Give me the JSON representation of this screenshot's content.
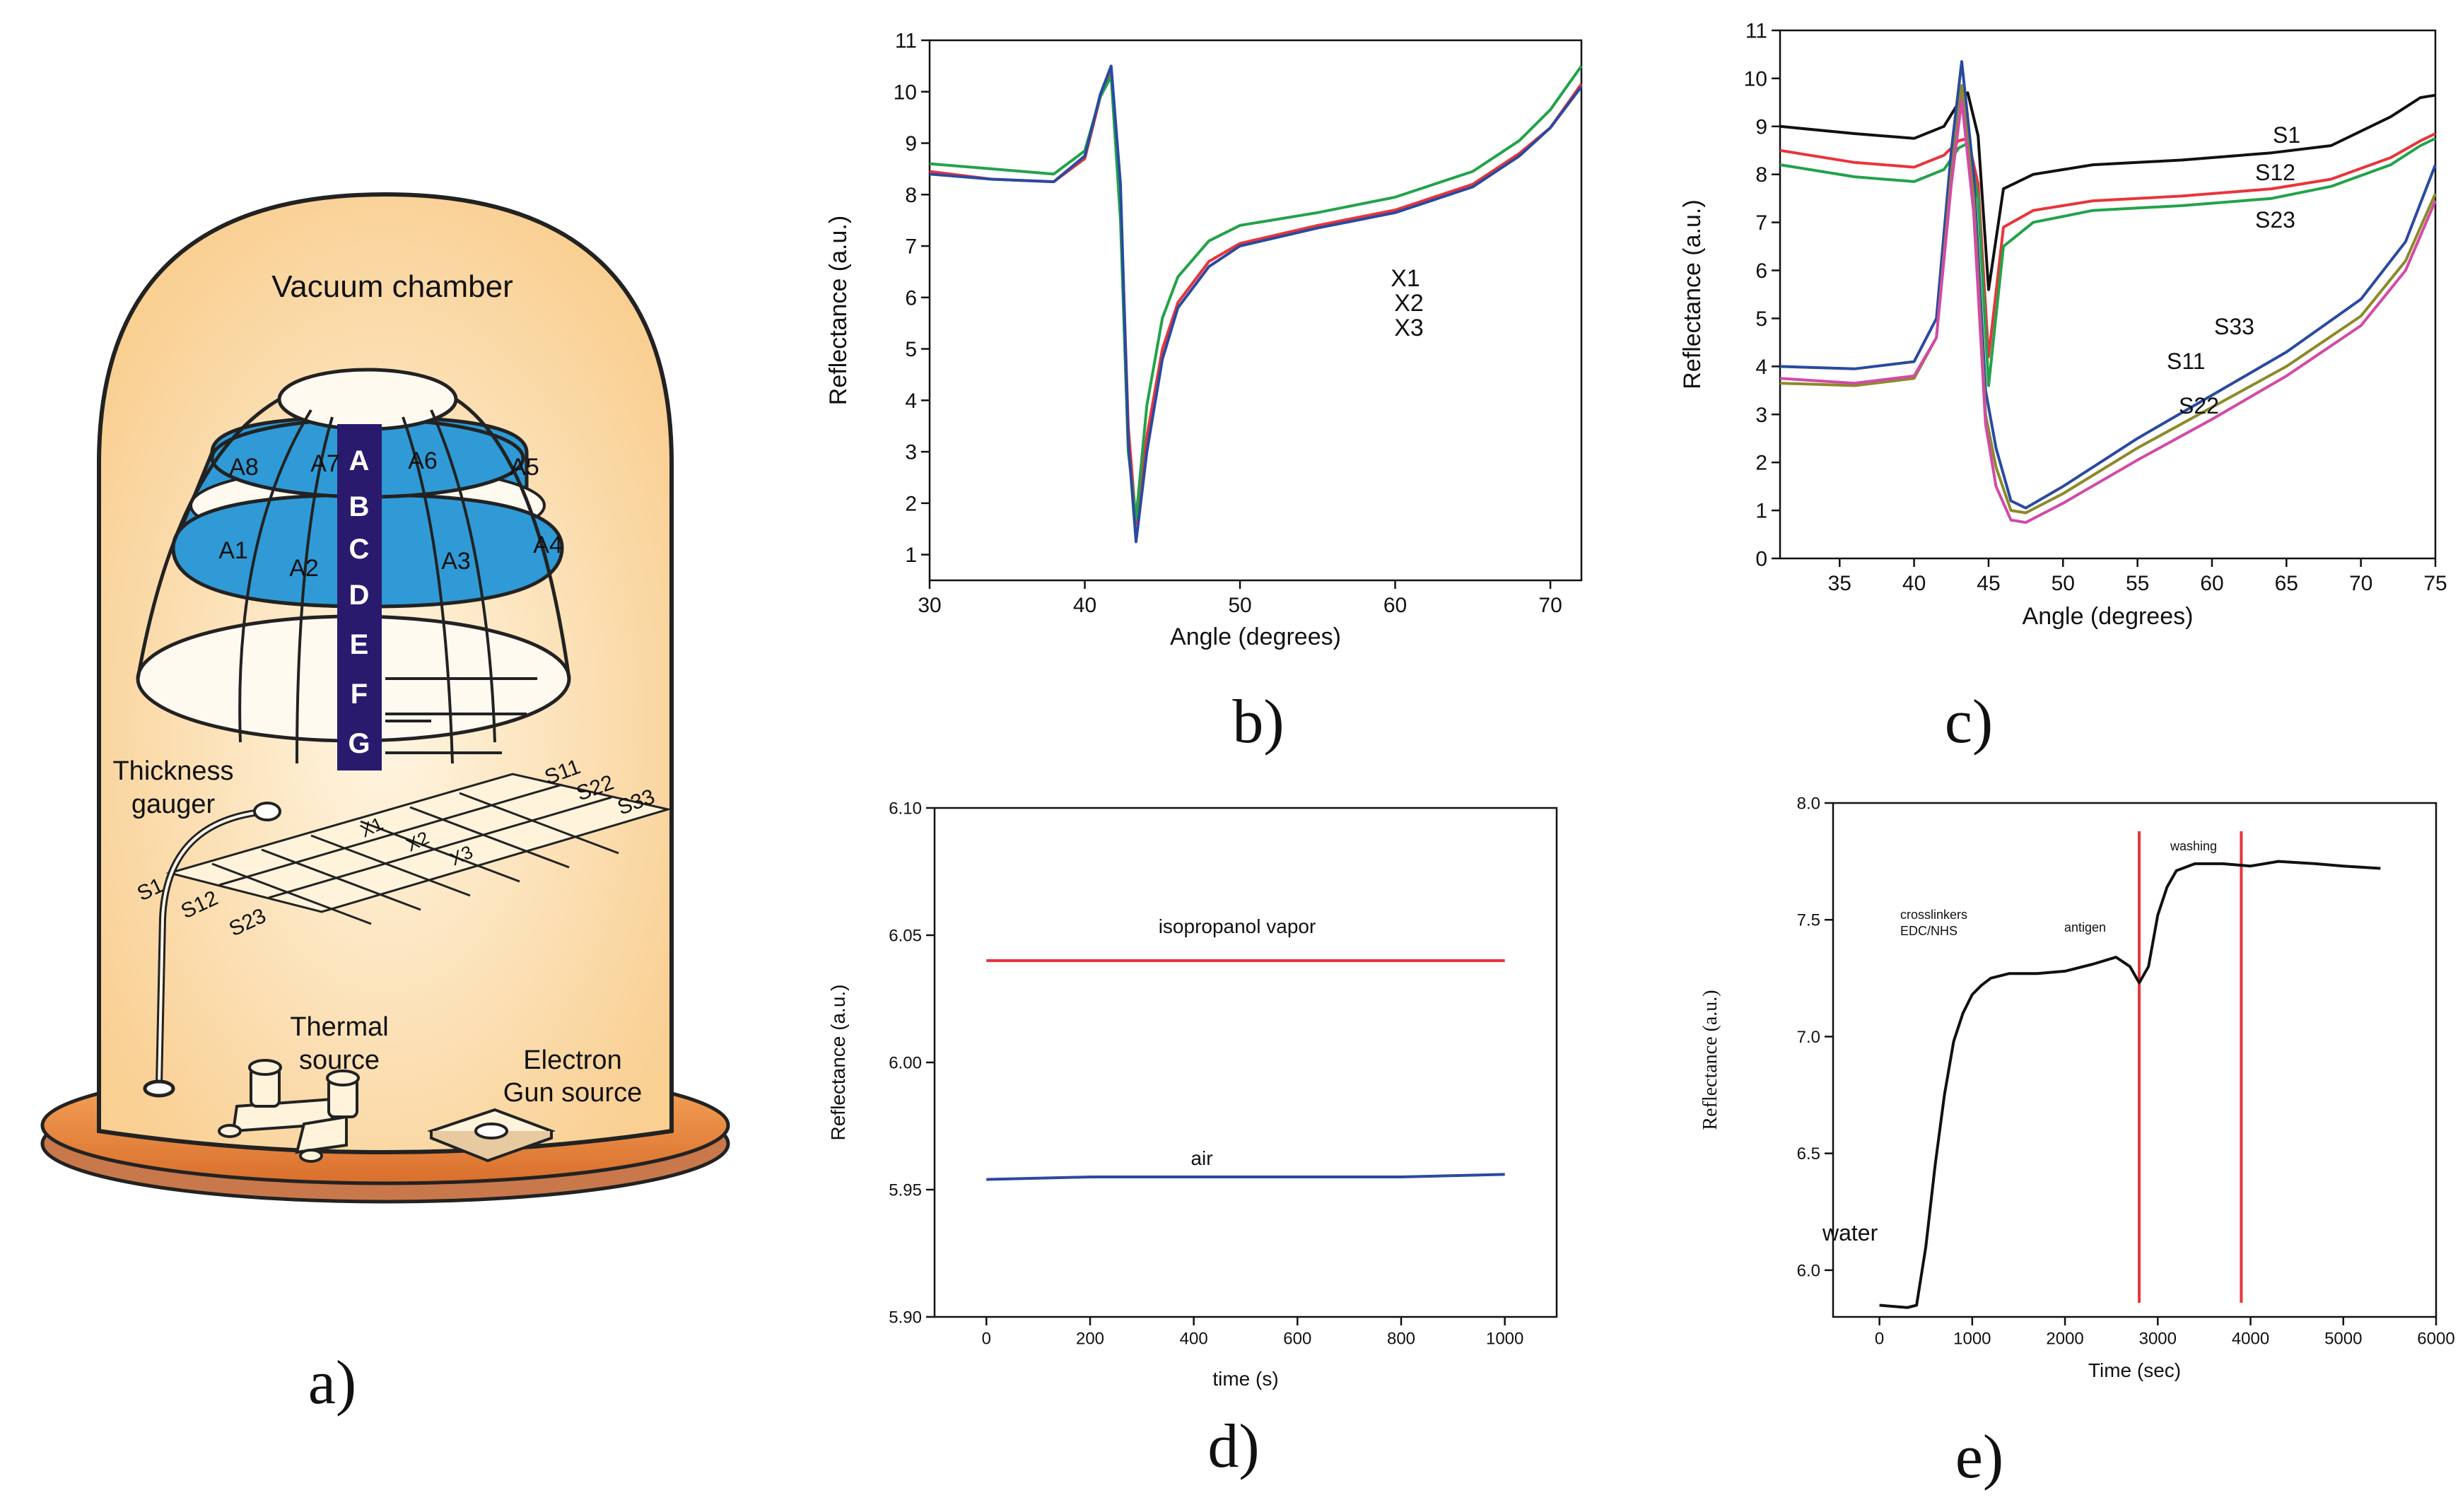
{
  "captions": {
    "a": "a)",
    "b": "b)",
    "c": "c)",
    "d": "d)",
    "e": "e)"
  },
  "diagram": {
    "chamber_label": "Vacuum chamber",
    "zones": [
      "A",
      "B",
      "C",
      "D",
      "E",
      "F",
      "G"
    ],
    "sector_labels": [
      "A8",
      "A7",
      "A6",
      "A5",
      "A1",
      "A2",
      "A3",
      "A4"
    ],
    "thickness_gauge": [
      "Thickness",
      "gauger"
    ],
    "thermal_source": [
      "Thermal",
      "source"
    ],
    "electron_gun": [
      "Electron",
      "Gun source"
    ],
    "substrate_labels": [
      "S11",
      "S22",
      "S33",
      "S1",
      "S12",
      "S23",
      "X1",
      "X2",
      "X3"
    ],
    "colors": {
      "chamber": "#fde3b8",
      "band": "#2f9ad6",
      "column": "#2a1a6e",
      "base": "#f3a05a"
    }
  },
  "chart_data": [
    {
      "panel": "b",
      "type": "line",
      "xlabel": "Angle (degrees)",
      "ylabel": "Reflectance (a.u.)",
      "xlim": [
        30,
        72
      ],
      "ylim": [
        0.5,
        11
      ],
      "xticks": [
        30,
        40,
        50,
        60,
        70
      ],
      "yticks": [
        1,
        2,
        3,
        4,
        5,
        6,
        7,
        8,
        9,
        10,
        11
      ],
      "series": [
        {
          "name": "X1",
          "color": "#e8353a",
          "x": [
            30,
            34,
            38,
            40,
            41,
            41.7,
            42.3,
            42.8,
            43.3,
            44,
            45,
            46,
            48,
            50,
            55,
            60,
            65,
            68,
            70,
            72
          ],
          "y": [
            8.45,
            8.3,
            8.25,
            8.7,
            9.9,
            10.45,
            8.0,
            3.5,
            1.6,
            3.3,
            5.0,
            5.9,
            6.7,
            7.05,
            7.4,
            7.7,
            8.2,
            8.8,
            9.3,
            10.15
          ]
        },
        {
          "name": "X2",
          "color": "#22a34a",
          "x": [
            30,
            34,
            38,
            40,
            41,
            41.7,
            42.3,
            42.8,
            43.3,
            44,
            45,
            46,
            48,
            50,
            55,
            60,
            65,
            68,
            70,
            72
          ],
          "y": [
            8.6,
            8.5,
            8.4,
            8.85,
            9.9,
            10.3,
            7.5,
            3.0,
            1.7,
            3.9,
            5.6,
            6.4,
            7.1,
            7.4,
            7.65,
            7.95,
            8.45,
            9.05,
            9.65,
            10.5
          ]
        },
        {
          "name": "X3",
          "color": "#2a4aa0",
          "x": [
            30,
            34,
            38,
            40,
            41,
            41.7,
            42.3,
            42.8,
            43.3,
            44,
            45,
            46,
            48,
            50,
            55,
            60,
            65,
            68,
            70,
            72
          ],
          "y": [
            8.4,
            8.3,
            8.25,
            8.75,
            9.95,
            10.5,
            8.2,
            3.2,
            1.25,
            3.0,
            4.8,
            5.8,
            6.6,
            7.0,
            7.35,
            7.65,
            8.15,
            8.75,
            9.3,
            10.1
          ]
        }
      ]
    },
    {
      "panel": "c",
      "type": "line",
      "xlabel": "Angle (degrees)",
      "ylabel": "Reflectance (a.u.)",
      "xlim": [
        31,
        75
      ],
      "ylim": [
        0,
        11
      ],
      "xticks": [
        35,
        40,
        45,
        50,
        55,
        60,
        65,
        70,
        75
      ],
      "yticks": [
        0,
        1,
        2,
        3,
        4,
        5,
        6,
        7,
        8,
        9,
        10,
        11
      ],
      "series": [
        {
          "name": "S1",
          "color": "#111111",
          "x": [
            31,
            36,
            40,
            42,
            43,
            43.6,
            44.3,
            45,
            46,
            48,
            52,
            58,
            64,
            68,
            72,
            74,
            75
          ],
          "y": [
            9.0,
            8.85,
            8.75,
            9.0,
            9.5,
            9.7,
            8.8,
            5.6,
            7.7,
            8.0,
            8.2,
            8.3,
            8.45,
            8.6,
            9.2,
            9.6,
            9.65
          ]
        },
        {
          "name": "S12",
          "color": "#e8353a",
          "x": [
            31,
            36,
            40,
            42,
            43,
            43.6,
            44.3,
            45,
            46,
            48,
            52,
            58,
            64,
            68,
            72,
            74,
            75
          ],
          "y": [
            8.5,
            8.25,
            8.15,
            8.4,
            8.7,
            8.75,
            7.8,
            4.2,
            6.9,
            7.25,
            7.45,
            7.55,
            7.7,
            7.9,
            8.35,
            8.7,
            8.85
          ]
        },
        {
          "name": "S23",
          "color": "#22a34a",
          "x": [
            31,
            36,
            40,
            42,
            43,
            43.6,
            44.3,
            45,
            46,
            48,
            52,
            58,
            64,
            68,
            72,
            74,
            75
          ],
          "y": [
            8.2,
            7.95,
            7.85,
            8.1,
            8.55,
            8.65,
            7.5,
            3.6,
            6.5,
            7.0,
            7.25,
            7.35,
            7.5,
            7.75,
            8.2,
            8.6,
            8.75
          ]
        },
        {
          "name": "S11",
          "color": "#2a4aa0",
          "x": [
            31,
            36,
            40,
            41.5,
            42.5,
            43.2,
            44,
            44.8,
            45.5,
            46.5,
            47.5,
            50,
            55,
            60,
            65,
            70,
            73,
            75
          ],
          "y": [
            4.0,
            3.95,
            4.1,
            5.0,
            8.5,
            10.35,
            8.0,
            3.5,
            2.3,
            1.2,
            1.05,
            1.5,
            2.5,
            3.4,
            4.3,
            5.4,
            6.6,
            8.2
          ]
        },
        {
          "name": "S33",
          "color": "#8c8a2a",
          "x": [
            31,
            36,
            40,
            41.5,
            42.5,
            43.2,
            44,
            44.8,
            45.5,
            46.5,
            47.5,
            50,
            55,
            60,
            65,
            70,
            73,
            75
          ],
          "y": [
            3.65,
            3.6,
            3.75,
            4.6,
            8.0,
            9.85,
            7.5,
            3.0,
            1.9,
            1.0,
            0.95,
            1.35,
            2.3,
            3.15,
            4.0,
            5.05,
            6.2,
            7.6
          ]
        },
        {
          "name": "S22",
          "color": "#d24aa6",
          "x": [
            31,
            36,
            40,
            41.5,
            42.5,
            43.2,
            44,
            44.8,
            45.5,
            46.5,
            47.5,
            50,
            55,
            60,
            65,
            70,
            73,
            75
          ],
          "y": [
            3.75,
            3.65,
            3.8,
            4.6,
            7.8,
            9.55,
            7.2,
            2.8,
            1.5,
            0.8,
            0.75,
            1.15,
            2.05,
            2.9,
            3.8,
            4.85,
            6.0,
            7.45
          ]
        }
      ]
    },
    {
      "panel": "d",
      "type": "line",
      "xlabel": "time (s)",
      "ylabel": "Reflectance (a.u.)",
      "xlim": [
        -100,
        1100
      ],
      "ylim": [
        5.9,
        6.1
      ],
      "xticks": [
        0,
        200,
        400,
        600,
        800,
        1000
      ],
      "yticks": [
        5.9,
        5.95,
        6.0,
        6.05,
        6.1
      ],
      "yticklabels": [
        "5.90",
        "5.95",
        "6.00",
        "6.05",
        "6.10"
      ],
      "annotations": [
        "isopropanol vapor",
        "air"
      ],
      "series": [
        {
          "name": "isopropanol vapor",
          "color": "#e8353a",
          "x": [
            0,
            200,
            400,
            600,
            800,
            1000
          ],
          "y": [
            6.04,
            6.04,
            6.04,
            6.04,
            6.04,
            6.04
          ]
        },
        {
          "name": "air",
          "color": "#2a4aa0",
          "x": [
            0,
            200,
            400,
            600,
            800,
            1000
          ],
          "y": [
            5.954,
            5.955,
            5.955,
            5.955,
            5.955,
            5.956
          ]
        }
      ]
    },
    {
      "panel": "e",
      "type": "line",
      "xlabel": "Time (sec)",
      "ylabel": "Reflectance (a.u.)",
      "xlim": [
        -500,
        6000
      ],
      "ylim": [
        5.8,
        8.0
      ],
      "xticks": [
        0,
        1000,
        2000,
        3000,
        4000,
        5000,
        6000
      ],
      "yticks": [
        6.0,
        6.5,
        7.0,
        7.5,
        8.0
      ],
      "yticklabels": [
        "6.0",
        "6.5",
        "7.0",
        "7.5",
        "8.0"
      ],
      "annotations": [
        "water",
        "crosslinkers",
        "EDC/NHS",
        "antigen",
        "washing"
      ],
      "vlines": [
        2800,
        3900
      ],
      "series": [
        {
          "name": "",
          "color": "#111111",
          "x": [
            0,
            300,
            400,
            500,
            600,
            700,
            800,
            900,
            1000,
            1100,
            1200,
            1400,
            1700,
            2000,
            2300,
            2550,
            2700,
            2800,
            2900,
            3000,
            3100,
            3200,
            3400,
            3700,
            4000,
            4300,
            4700,
            5000,
            5400
          ],
          "y": [
            5.85,
            5.84,
            5.85,
            6.1,
            6.45,
            6.75,
            6.98,
            7.1,
            7.18,
            7.22,
            7.25,
            7.27,
            7.27,
            7.28,
            7.31,
            7.34,
            7.3,
            7.23,
            7.3,
            7.52,
            7.64,
            7.71,
            7.74,
            7.74,
            7.73,
            7.75,
            7.74,
            7.73,
            7.72
          ]
        }
      ]
    }
  ]
}
